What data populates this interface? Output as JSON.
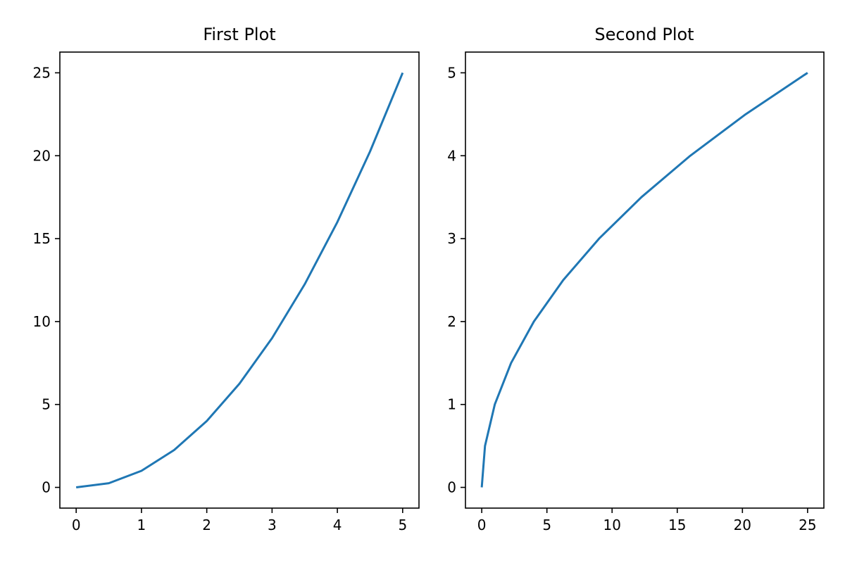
{
  "chart_data": [
    {
      "type": "line",
      "title": "First Plot",
      "xlabel": "",
      "ylabel": "",
      "xlim": [
        -0.25,
        5.25
      ],
      "ylim": [
        -1.25,
        26.25
      ],
      "xticks": [
        0,
        1,
        2,
        3,
        4,
        5
      ],
      "xtick_labels": [
        "0",
        "1",
        "2",
        "3",
        "4",
        "5"
      ],
      "yticks": [
        0,
        5,
        10,
        15,
        20,
        25
      ],
      "ytick_labels": [
        "0",
        "5",
        "10",
        "15",
        "20",
        "25"
      ],
      "grid": false,
      "series": [
        {
          "color": "#1f77b4",
          "x": [
            0,
            0.5,
            1,
            1.5,
            2,
            2.5,
            3,
            3.5,
            4,
            4.5,
            5
          ],
          "y": [
            0,
            0.25,
            1,
            2.25,
            4,
            6.25,
            9,
            12.25,
            16,
            20.25,
            25
          ]
        }
      ]
    },
    {
      "type": "line",
      "title": "Second Plot",
      "xlabel": "",
      "ylabel": "",
      "xlim": [
        -1.25,
        26.25
      ],
      "ylim": [
        -0.25,
        5.25
      ],
      "xticks": [
        0,
        5,
        10,
        15,
        20,
        25
      ],
      "xtick_labels": [
        "0",
        "5",
        "10",
        "15",
        "20",
        "25"
      ],
      "yticks": [
        0,
        1,
        2,
        3,
        4,
        5
      ],
      "ytick_labels": [
        "0",
        "1",
        "2",
        "3",
        "4",
        "5"
      ],
      "grid": false,
      "series": [
        {
          "color": "#1f77b4",
          "x": [
            0,
            0.25,
            1,
            2.25,
            4,
            6.25,
            9,
            12.25,
            16,
            20.25,
            25
          ],
          "y": [
            0,
            0.5,
            1,
            1.5,
            2,
            2.5,
            3,
            3.5,
            4,
            4.5,
            5
          ]
        }
      ]
    }
  ]
}
